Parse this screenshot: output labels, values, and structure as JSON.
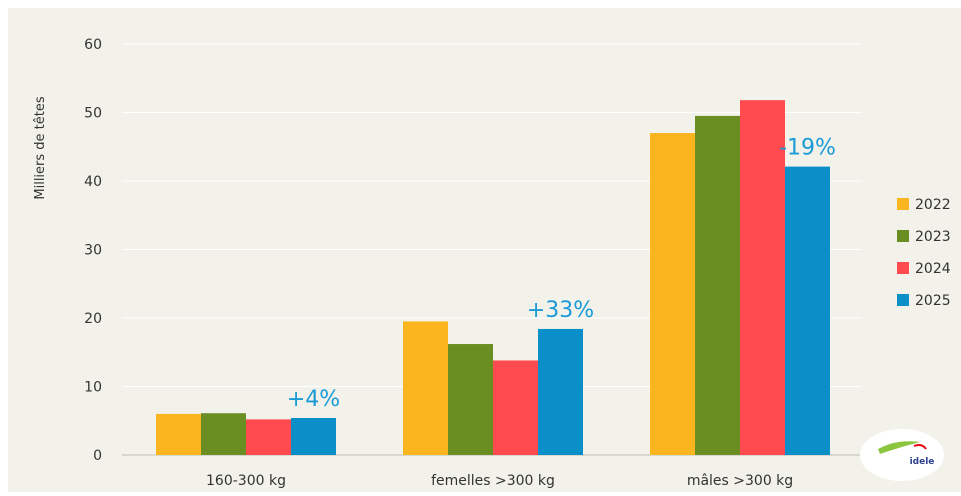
{
  "chart_data": {
    "type": "bar",
    "ylabel": "Milliers de têtes",
    "ylim": [
      0,
      60
    ],
    "yticks": [
      "0",
      "10",
      "20",
      "30",
      "40",
      "50",
      "60"
    ],
    "grid": true,
    "legend_position": "right",
    "categories": [
      "160-300 kg",
      "femelles >300 kg",
      "mâles >300 kg"
    ],
    "series": [
      {
        "name": "2022",
        "color": "#FBB51F",
        "values": [
          6.0,
          19.5,
          47.0
        ]
      },
      {
        "name": "2023",
        "color": "#6B8E23",
        "values": [
          6.1,
          16.2,
          49.5
        ]
      },
      {
        "name": "2024",
        "color": "#FF4B4F",
        "values": [
          5.2,
          13.8,
          51.8
        ]
      },
      {
        "name": "2025",
        "color": "#0A8FC8",
        "values": [
          5.4,
          18.4,
          42.1
        ]
      }
    ],
    "annotations": [
      "+4%",
      "+33%",
      "-19%"
    ],
    "annotation_color": "#1A9BD7",
    "background_color": "#F2F2EA",
    "logo_text": "idele"
  }
}
